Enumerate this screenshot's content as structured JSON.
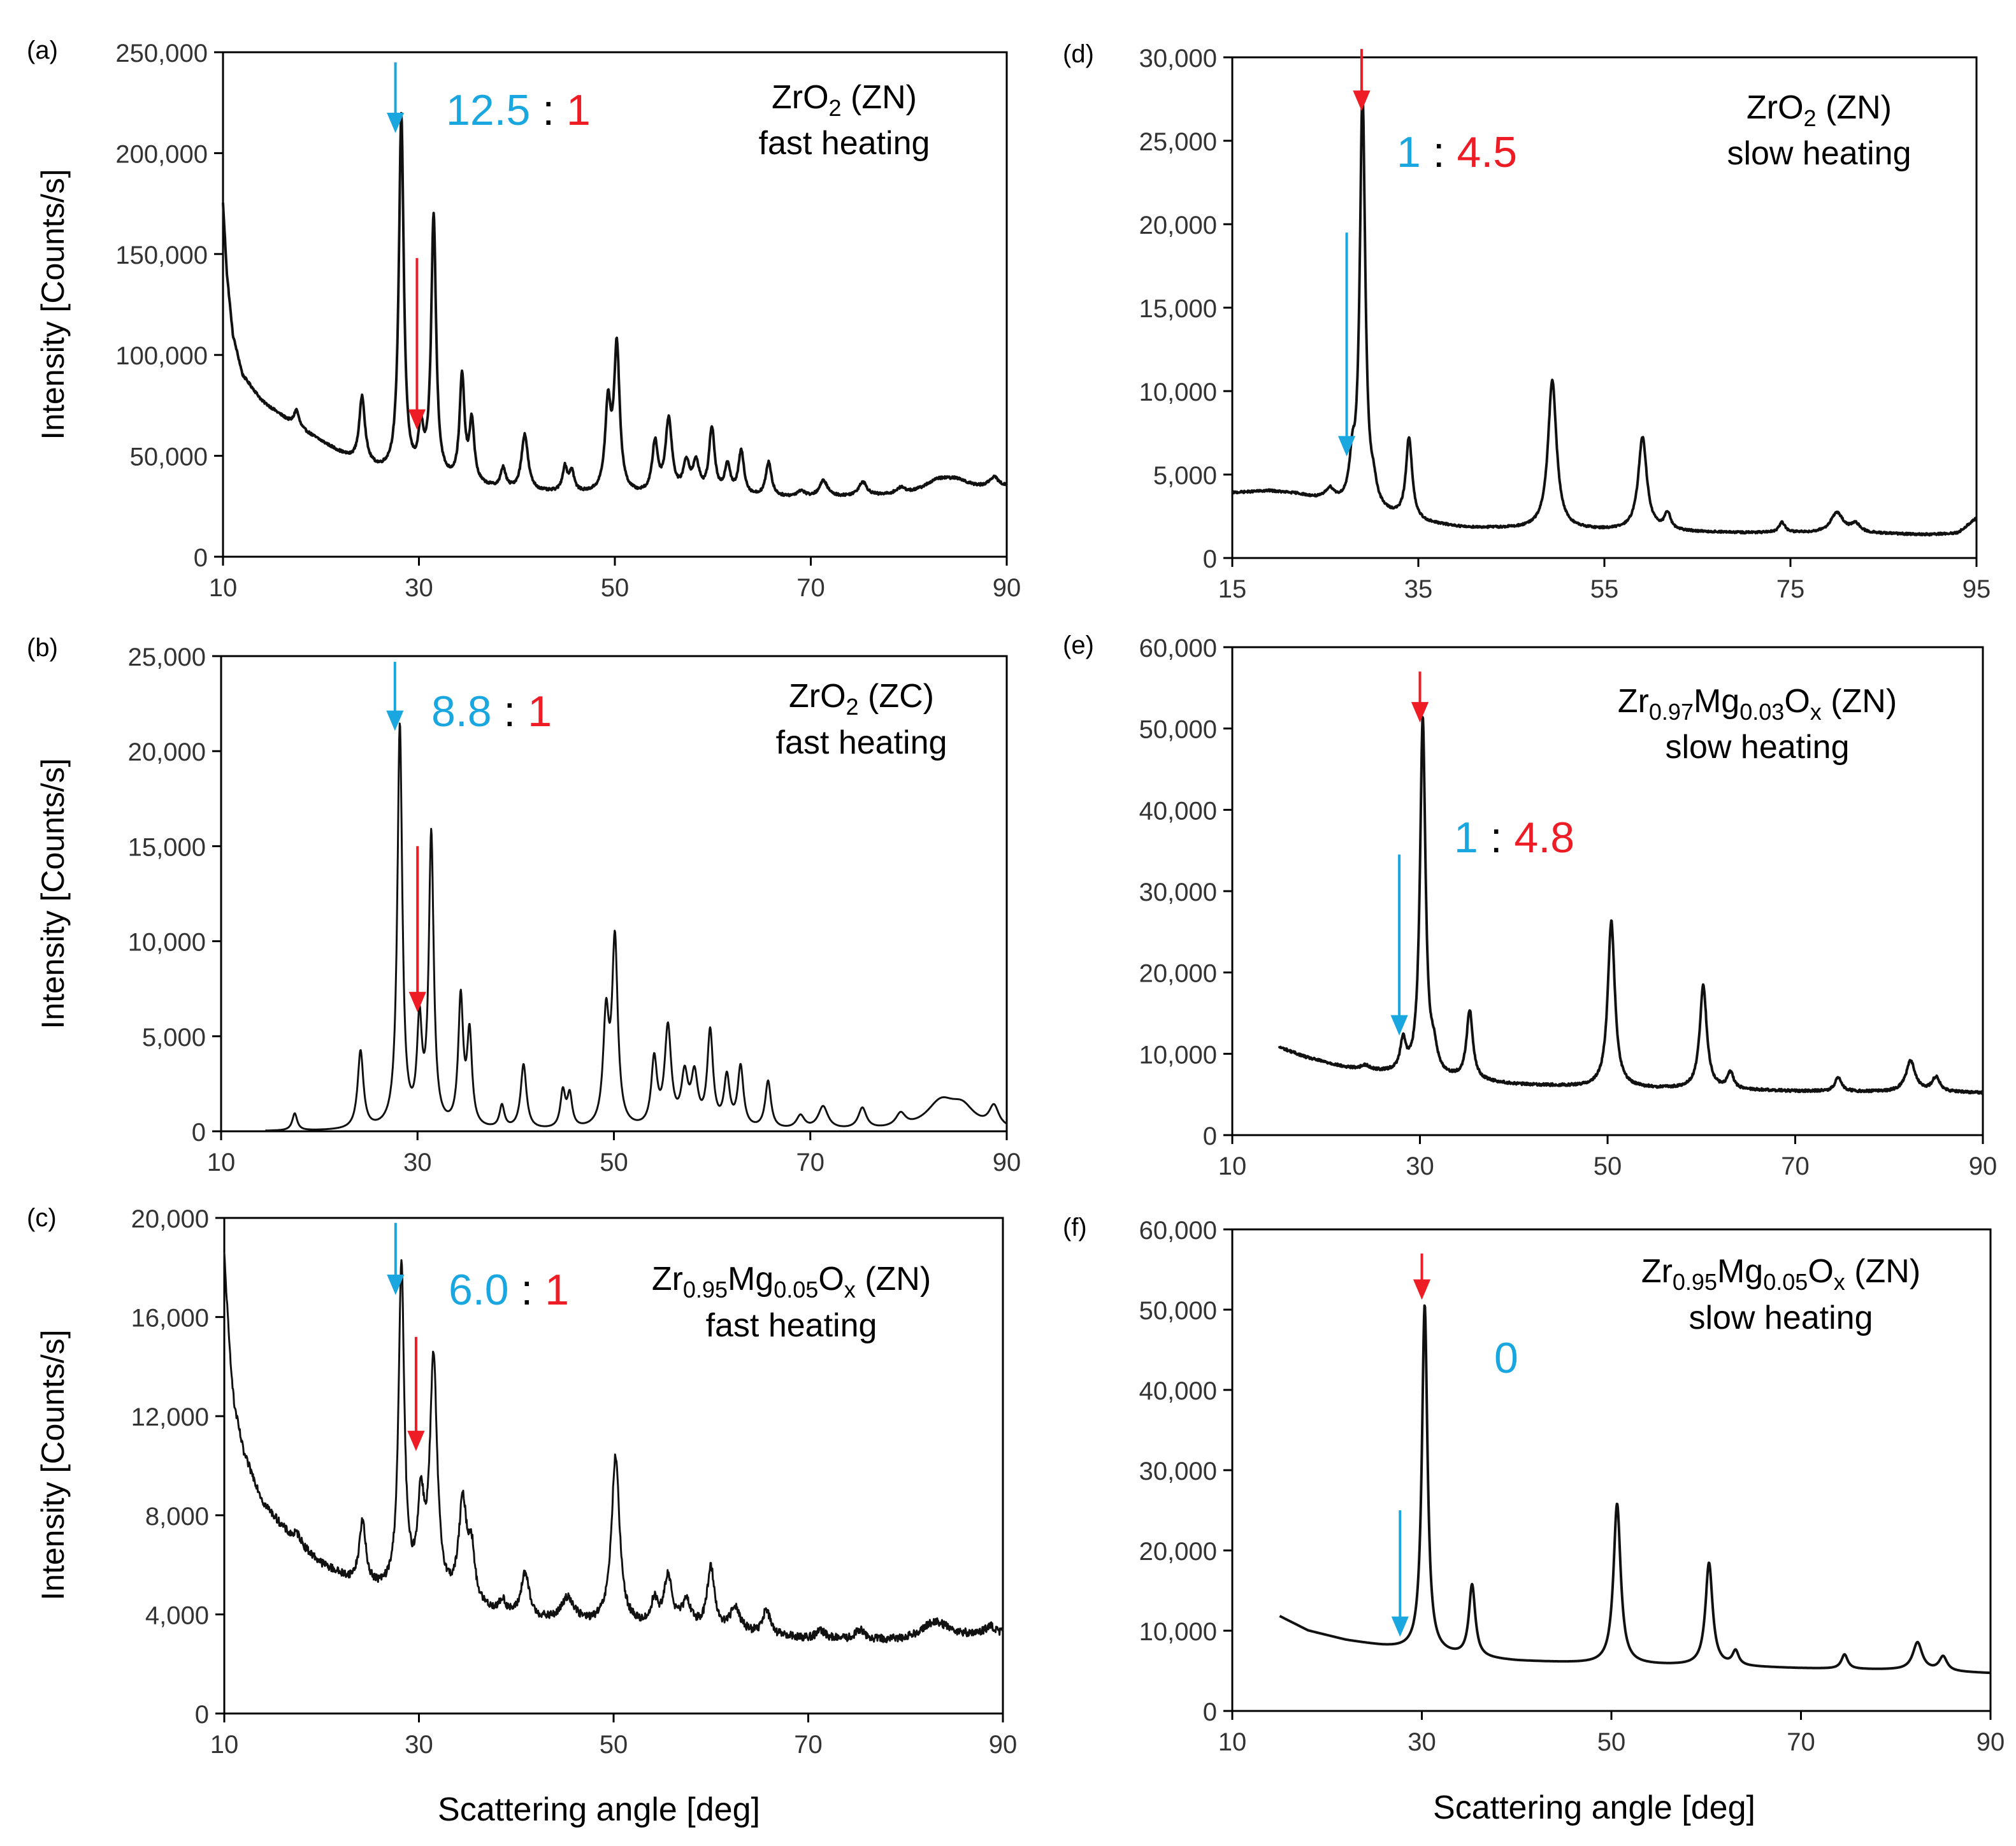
{
  "colors": {
    "blue": "#1aa7e0",
    "red": "#ee1c24",
    "black": "#000000",
    "line": "#111111"
  },
  "axis_labels": {
    "y": "Intensity [Counts/s]",
    "x": "Scattering angle [deg]"
  },
  "chart_data": [
    {
      "id": "a",
      "panel_label": "(a)",
      "type": "line",
      "title_line1_parts": [
        [
          "ZrO",
          ""
        ],
        [
          "2",
          "sub"
        ],
        [
          " (ZN)",
          ""
        ]
      ],
      "title_line2": "fast heating",
      "ratio_blue": "12.5",
      "ratio_sep": " : ",
      "ratio_red": "1",
      "xlim": [
        10,
        90
      ],
      "xticks": [
        10,
        30,
        50,
        70,
        90
      ],
      "xtick_labels": [
        "10",
        "30",
        "50",
        "70",
        "90"
      ],
      "ylim": [
        0,
        250000
      ],
      "yticks": [
        0,
        50000,
        100000,
        150000,
        200000,
        250000
      ],
      "ytick_labels": [
        "0",
        "50,000",
        "100,000",
        "150,000",
        "200,000",
        "250,000"
      ],
      "baseline": [
        [
          10,
          175000
        ],
        [
          10.4,
          140000
        ],
        [
          11,
          110000
        ],
        [
          12,
          90000
        ],
        [
          14,
          77000
        ],
        [
          17,
          66000
        ],
        [
          20,
          57000
        ],
        [
          23,
          48000
        ],
        [
          26,
          42000
        ],
        [
          30,
          38000
        ],
        [
          35,
          35000
        ],
        [
          40,
          32000
        ],
        [
          45,
          31000
        ],
        [
          50,
          30000
        ],
        [
          60,
          29000
        ],
        [
          70,
          29000
        ],
        [
          80,
          30000
        ],
        [
          90,
          34000
        ]
      ],
      "peaks": [
        [
          17.5,
          8000,
          0.3
        ],
        [
          24.2,
          33000,
          0.35
        ],
        [
          28.2,
          178000,
          0.3
        ],
        [
          30.2,
          22000,
          0.3
        ],
        [
          31.5,
          130000,
          0.3
        ],
        [
          34.4,
          52000,
          0.3
        ],
        [
          35.4,
          30000,
          0.3
        ],
        [
          38.6,
          10000,
          0.3
        ],
        [
          40.8,
          28000,
          0.4
        ],
        [
          44.9,
          12000,
          0.3
        ],
        [
          45.6,
          10000,
          0.3
        ],
        [
          49.3,
          42000,
          0.35
        ],
        [
          50.2,
          72000,
          0.35
        ],
        [
          54.1,
          25000,
          0.35
        ],
        [
          55.5,
          37000,
          0.4
        ],
        [
          57.3,
          15000,
          0.4
        ],
        [
          58.3,
          15000,
          0.4
        ],
        [
          59.9,
          33000,
          0.35
        ],
        [
          61.5,
          15000,
          0.35
        ],
        [
          62.9,
          22000,
          0.35
        ],
        [
          65.7,
          17000,
          0.35
        ],
        [
          69,
          3000,
          0.5
        ],
        [
          71.3,
          8000,
          0.5
        ],
        [
          75.3,
          7000,
          0.5
        ],
        [
          79.2,
          3000,
          0.6
        ],
        [
          83,
          6000,
          1.8
        ],
        [
          85,
          4000,
          1.5
        ],
        [
          88.7,
          5000,
          0.6
        ]
      ],
      "noise": 600,
      "blue_arrow": [
        27.6,
        245000,
        215000
      ],
      "red_arrow": [
        29.8,
        148000,
        68000
      ]
    },
    {
      "id": "b",
      "panel_label": "(b)",
      "type": "line",
      "title_line1_parts": [
        [
          "ZrO",
          ""
        ],
        [
          "2",
          "sub"
        ],
        [
          " (ZC)",
          ""
        ]
      ],
      "title_line2": "fast heating",
      "ratio_blue": "8.8",
      "ratio_sep": " : ",
      "ratio_red": "1",
      "xlim": [
        10,
        90
      ],
      "xticks": [
        10,
        30,
        50,
        70,
        90
      ],
      "xtick_labels": [
        "10",
        "30",
        "50",
        "70",
        "90"
      ],
      "ylim": [
        0,
        25000
      ],
      "yticks": [
        0,
        5000,
        10000,
        15000,
        20000,
        25000
      ],
      "ytick_labels": [
        "0",
        "5,000",
        "10,000",
        "15,000",
        "20,000",
        "25,000"
      ],
      "start_x": 14.5,
      "baseline": [
        [
          14.5,
          0
        ],
        [
          90,
          0
        ]
      ],
      "peaks": [
        [
          17.5,
          900,
          0.3
        ],
        [
          24.2,
          4100,
          0.35
        ],
        [
          28.2,
          21200,
          0.3
        ],
        [
          30.2,
          5200,
          0.3
        ],
        [
          31.4,
          15300,
          0.3
        ],
        [
          34.4,
          6700,
          0.3
        ],
        [
          35.3,
          4800,
          0.3
        ],
        [
          38.6,
          1200,
          0.3
        ],
        [
          40.8,
          3400,
          0.35
        ],
        [
          44.8,
          1900,
          0.3
        ],
        [
          45.5,
          1700,
          0.3
        ],
        [
          49.2,
          5600,
          0.35
        ],
        [
          50.1,
          9700,
          0.35
        ],
        [
          54.1,
          3500,
          0.35
        ],
        [
          55.5,
          5200,
          0.4
        ],
        [
          57.2,
          2600,
          0.4
        ],
        [
          58.2,
          2600,
          0.4
        ],
        [
          59.8,
          5000,
          0.35
        ],
        [
          61.5,
          2600,
          0.35
        ],
        [
          62.9,
          3200,
          0.35
        ],
        [
          65.7,
          2500,
          0.35
        ],
        [
          69,
          700,
          0.5
        ],
        [
          71.3,
          1200,
          0.6
        ],
        [
          75.3,
          1100,
          0.5
        ],
        [
          79.2,
          700,
          0.6
        ],
        [
          83.3,
          1400,
          1.8
        ],
        [
          85.5,
          1000,
          1.5
        ],
        [
          88.7,
          1100,
          0.6
        ]
      ],
      "noise": 0,
      "blue_arrow": [
        27.7,
        24700,
        21600
      ],
      "red_arrow": [
        30.0,
        15000,
        6800
      ]
    },
    {
      "id": "c",
      "panel_label": "(c)",
      "type": "line",
      "title_line1_parts": [
        [
          "Zr",
          ""
        ],
        [
          "0.95",
          "sub"
        ],
        [
          "Mg",
          ""
        ],
        [
          "0.05",
          "sub"
        ],
        [
          "O",
          ""
        ],
        [
          "x",
          "sub"
        ],
        [
          " (ZN)",
          ""
        ]
      ],
      "title_line2": "fast heating",
      "ratio_blue": "6.0",
      "ratio_sep": " : ",
      "ratio_red": "1",
      "xlim": [
        10,
        90
      ],
      "xticks": [
        10,
        30,
        50,
        70,
        90
      ],
      "xtick_labels": [
        "10",
        "30",
        "50",
        "70",
        "90"
      ],
      "ylim": [
        0,
        20000
      ],
      "yticks": [
        0,
        4000,
        8000,
        12000,
        16000,
        20000
      ],
      "ytick_labels": [
        "0",
        "4,000",
        "8,000",
        "12,000",
        "16,000",
        "20,000"
      ],
      "baseline": [
        [
          10,
          18500
        ],
        [
          10.5,
          15000
        ],
        [
          11,
          12500
        ],
        [
          12,
          10500
        ],
        [
          14,
          8500
        ],
        [
          17,
          7000
        ],
        [
          20,
          6000
        ],
        [
          23,
          5300
        ],
        [
          26,
          4900
        ],
        [
          30,
          4600
        ],
        [
          35,
          4200
        ],
        [
          40,
          3800
        ],
        [
          45,
          3600
        ],
        [
          50,
          3500
        ],
        [
          60,
          3300
        ],
        [
          70,
          3000
        ],
        [
          80,
          2900
        ],
        [
          90,
          3200
        ]
      ],
      "peaks": [
        [
          17.5,
          400,
          0.5
        ],
        [
          24.2,
          2500,
          0.4
        ],
        [
          28.2,
          13200,
          0.35
        ],
        [
          30.2,
          3500,
          0.4
        ],
        [
          31.5,
          9500,
          0.45
        ],
        [
          34.5,
          4000,
          0.5
        ],
        [
          35.4,
          2000,
          0.4
        ],
        [
          38.6,
          500,
          0.4
        ],
        [
          40.9,
          1800,
          0.5
        ],
        [
          45.3,
          1000,
          0.8
        ],
        [
          50.2,
          6800,
          0.5
        ],
        [
          54.2,
          1000,
          0.4
        ],
        [
          55.6,
          2000,
          0.5
        ],
        [
          57.5,
          1000,
          0.6
        ],
        [
          60,
          2500,
          0.45
        ],
        [
          62.5,
          1000,
          0.6
        ],
        [
          65.7,
          1000,
          0.45
        ],
        [
          71.3,
          300,
          0.6
        ],
        [
          75.3,
          400,
          0.5
        ],
        [
          83,
          700,
          1.8
        ],
        [
          88.7,
          300,
          0.6
        ]
      ],
      "noise": 160,
      "blue_arrow": [
        27.6,
        19800,
        17300
      ],
      "red_arrow": [
        29.7,
        15200,
        11000
      ]
    },
    {
      "id": "d",
      "panel_label": "(d)",
      "type": "line",
      "title_line1_parts": [
        [
          "ZrO",
          ""
        ],
        [
          "2",
          "sub"
        ],
        [
          " (ZN)",
          ""
        ]
      ],
      "title_line2": "slow heating",
      "ratio_blue": "1",
      "ratio_sep": " : ",
      "ratio_red": "4.5",
      "xlim": [
        15,
        95
      ],
      "xticks": [
        15,
        35,
        55,
        75,
        95
      ],
      "xtick_labels": [
        "15",
        "35",
        "55",
        "75",
        "95"
      ],
      "ylim": [
        0,
        30000
      ],
      "yticks": [
        0,
        5000,
        10000,
        15000,
        20000,
        25000,
        30000
      ],
      "ytick_labels": [
        "0",
        "5,000",
        "10,000",
        "15,000",
        "20,000",
        "25,000",
        "30,000"
      ],
      "baseline": [
        [
          15,
          3900
        ],
        [
          19,
          4000
        ],
        [
          22,
          3800
        ],
        [
          26,
          3200
        ],
        [
          30,
          2700
        ],
        [
          35,
          2100
        ],
        [
          40,
          1800
        ],
        [
          50,
          1700
        ],
        [
          60,
          1600
        ],
        [
          70,
          1500
        ],
        [
          80,
          1500
        ],
        [
          90,
          1400
        ],
        [
          93,
          1500
        ],
        [
          95,
          2400
        ]
      ],
      "peaks": [
        [
          25.5,
          700,
          0.6
        ],
        [
          27.9,
          2200,
          0.35
        ],
        [
          29,
          24800,
          0.35
        ],
        [
          30.2,
          1000,
          0.4
        ],
        [
          34,
          4900,
          0.4
        ],
        [
          49.4,
          8900,
          0.55
        ],
        [
          59.1,
          5600,
          0.55
        ],
        [
          61.8,
          1000,
          0.4
        ],
        [
          74.1,
          600,
          0.4
        ],
        [
          80,
          1200,
          0.8
        ],
        [
          82,
          500,
          0.6
        ]
      ],
      "noise": 60,
      "blue_arrow": [
        27.3,
        19500,
        6700
      ],
      "red_arrow": [
        28.9,
        30500,
        27400
      ]
    },
    {
      "id": "e",
      "panel_label": "(e)",
      "type": "line",
      "title_line1_parts": [
        [
          "Zr",
          ""
        ],
        [
          "0.97",
          "sub"
        ],
        [
          "Mg",
          ""
        ],
        [
          "0.03",
          "sub"
        ],
        [
          "O",
          ""
        ],
        [
          "x",
          "sub"
        ],
        [
          " (ZN)",
          ""
        ]
      ],
      "title_line2": "slow heating",
      "ratio_blue": "1",
      "ratio_sep": " : ",
      "ratio_red": "4.8",
      "xlim": [
        10,
        90
      ],
      "xticks": [
        10,
        30,
        50,
        70,
        90
      ],
      "xtick_labels": [
        "10",
        "30",
        "50",
        "70",
        "90"
      ],
      "ylim": [
        0,
        60000
      ],
      "yticks": [
        0,
        10000,
        20000,
        30000,
        40000,
        50000,
        60000
      ],
      "ytick_labels": [
        "0",
        "10,000",
        "20,000",
        "30,000",
        "40,000",
        "50,000",
        "60,000"
      ],
      "start_x": 15,
      "baseline": [
        [
          15,
          10800
        ],
        [
          18,
          9500
        ],
        [
          22,
          8300
        ],
        [
          26,
          7700
        ],
        [
          30,
          7200
        ],
        [
          35,
          6700
        ],
        [
          40,
          6200
        ],
        [
          50,
          5800
        ],
        [
          60,
          5600
        ],
        [
          70,
          5400
        ],
        [
          80,
          5300
        ],
        [
          90,
          5200
        ]
      ],
      "peaks": [
        [
          24.2,
          500,
          0.5
        ],
        [
          28.2,
          3800,
          0.35
        ],
        [
          30.3,
          43800,
          0.35
        ],
        [
          31.5,
          2500,
          0.4
        ],
        [
          35.3,
          8500,
          0.4
        ],
        [
          50.4,
          20500,
          0.45
        ],
        [
          60.2,
          12700,
          0.45
        ],
        [
          63.1,
          2000,
          0.4
        ],
        [
          74.6,
          1800,
          0.4
        ],
        [
          82.3,
          3800,
          0.6
        ],
        [
          85,
          1800,
          0.5
        ]
      ],
      "noise": 150,
      "blue_arrow": [
        27.8,
        34500,
        13500
      ],
      "red_arrow": [
        30.0,
        57000,
        52000
      ]
    },
    {
      "id": "f",
      "panel_label": "(f)",
      "type": "line",
      "title_line1_parts": [
        [
          "Zr",
          ""
        ],
        [
          "0.95",
          "sub"
        ],
        [
          "Mg",
          ""
        ],
        [
          "0.05",
          "sub"
        ],
        [
          "O",
          ""
        ],
        [
          "x",
          "sub"
        ],
        [
          " (ZN)",
          ""
        ]
      ],
      "title_line2": "slow heating",
      "ratio_blue": "0",
      "ratio_sep": "",
      "ratio_red": "",
      "xlim": [
        10,
        90
      ],
      "xticks": [
        10,
        30,
        50,
        70,
        90
      ],
      "xtick_labels": [
        "10",
        "30",
        "50",
        "70",
        "90"
      ],
      "ylim": [
        0,
        60000
      ],
      "yticks": [
        0,
        10000,
        20000,
        30000,
        40000,
        50000,
        60000
      ],
      "ytick_labels": [
        "0",
        "10,000",
        "20,000",
        "30,000",
        "40,000",
        "50,000",
        "60,000"
      ],
      "start_x": 15,
      "baseline": [
        [
          15,
          11800
        ],
        [
          18,
          10000
        ],
        [
          22,
          8800
        ],
        [
          26,
          8000
        ],
        [
          30,
          7300
        ],
        [
          35,
          6600
        ],
        [
          40,
          6200
        ],
        [
          50,
          5800
        ],
        [
          60,
          5600
        ],
        [
          70,
          5300
        ],
        [
          80,
          5100
        ],
        [
          90,
          4700
        ]
      ],
      "peaks": [
        [
          30.3,
          43300,
          0.35
        ],
        [
          35.3,
          9000,
          0.4
        ],
        [
          50.6,
          20000,
          0.45
        ],
        [
          60.3,
          12800,
          0.45
        ],
        [
          63.1,
          1800,
          0.4
        ],
        [
          74.6,
          1800,
          0.4
        ],
        [
          82.3,
          3500,
          0.6
        ],
        [
          85,
          1800,
          0.5
        ]
      ],
      "noise": 0,
      "blue_arrow": [
        27.7,
        25000,
        10500
      ],
      "red_arrow": [
        30.0,
        57000,
        52500
      ]
    }
  ]
}
